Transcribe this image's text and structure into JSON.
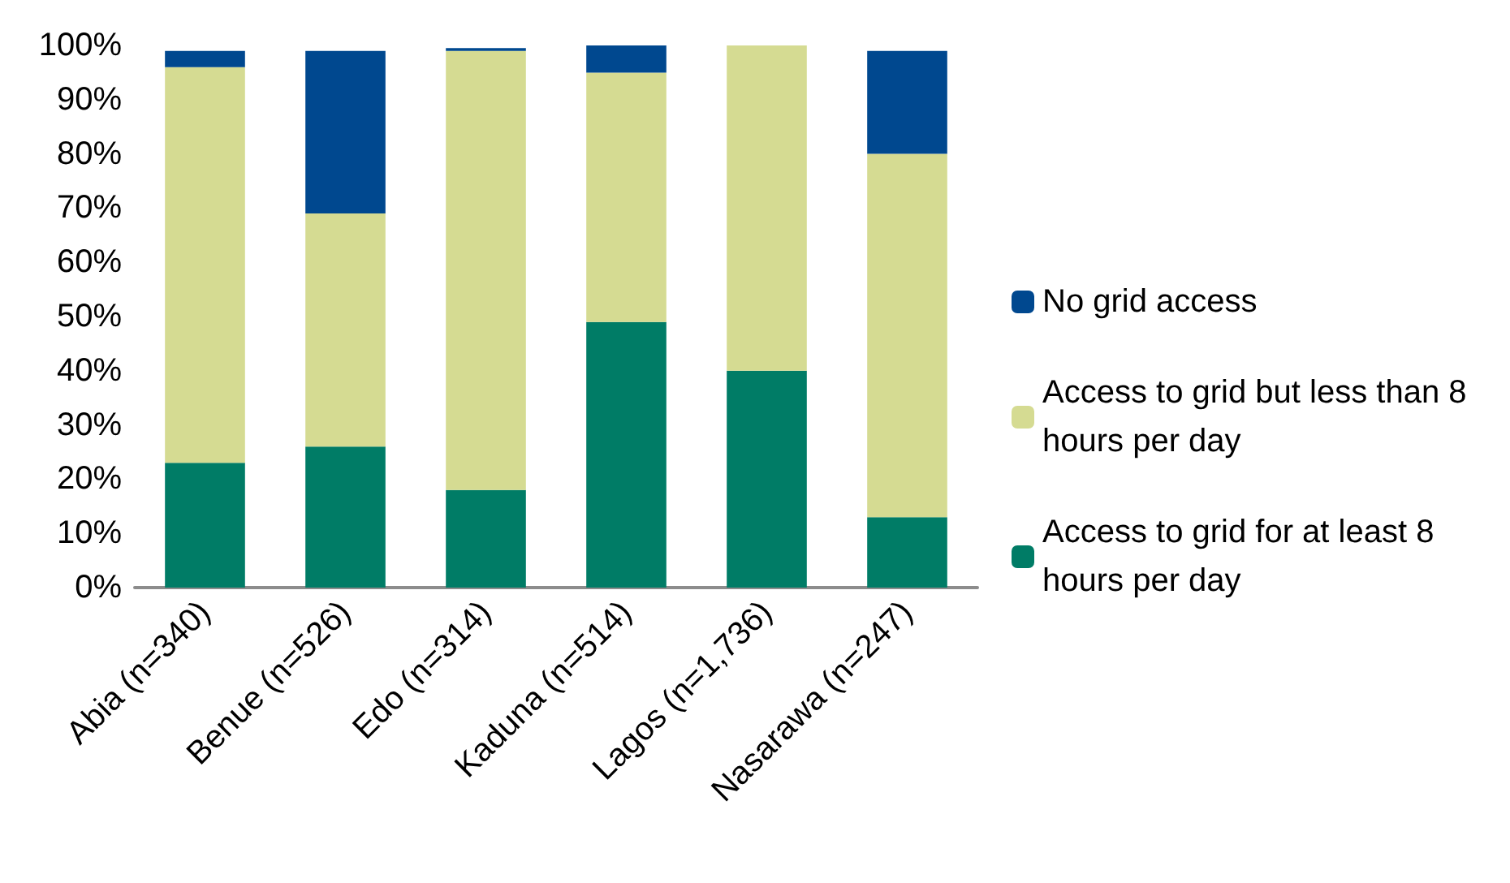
{
  "chart_data": {
    "type": "bar",
    "stacked": true,
    "categories": [
      "Abia (n=340)",
      "Benue (n=526)",
      "Edo (n=314)",
      "Kaduna (n=514)",
      "Lagos (n=1,736)",
      "Nasarawa (n=247)"
    ],
    "series": [
      {
        "name": "Access to grid for at least 8 hours per day",
        "color": "#007c66",
        "values": [
          23,
          26,
          18,
          49,
          40,
          13
        ]
      },
      {
        "name": "Access to grid but less than 8 hours per day",
        "color": "#d5db92",
        "values": [
          73,
          43,
          81,
          46,
          60,
          67
        ]
      },
      {
        "name": "No grid access",
        "color": "#00488f",
        "values": [
          3,
          30,
          0.5,
          5,
          0,
          19
        ]
      }
    ],
    "ylim": [
      0,
      100
    ],
    "yticks": [
      {
        "value": 0,
        "label": "0%"
      },
      {
        "value": 10,
        "label": "10%"
      },
      {
        "value": 20,
        "label": "20%"
      },
      {
        "value": 30,
        "label": "30%"
      },
      {
        "value": 40,
        "label": "40%"
      },
      {
        "value": 50,
        "label": "50%"
      },
      {
        "value": 60,
        "label": "60%"
      },
      {
        "value": 70,
        "label": "70%"
      },
      {
        "value": 80,
        "label": "80%"
      },
      {
        "value": 90,
        "label": "90%"
      },
      {
        "value": 100,
        "label": "100%"
      }
    ],
    "grid": false,
    "legend": "right"
  }
}
